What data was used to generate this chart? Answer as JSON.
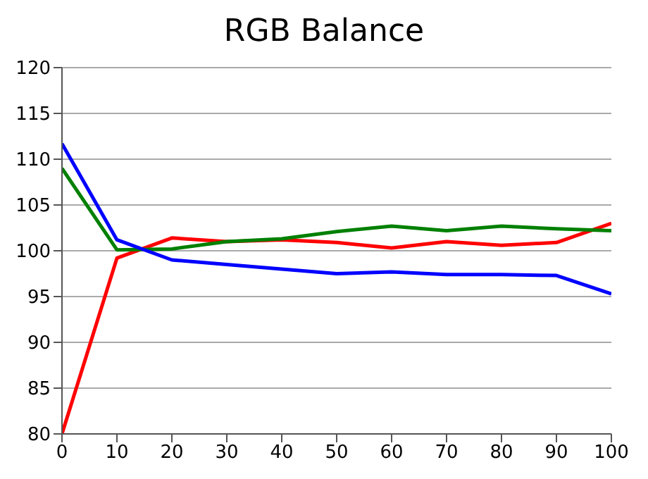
{
  "chart_data": {
    "type": "line",
    "title": "RGB Balance",
    "x": [
      0,
      10,
      20,
      30,
      40,
      50,
      60,
      70,
      80,
      90,
      100
    ],
    "series": [
      {
        "color": "#ff0000",
        "values": [
          80,
          99.2,
          101.4,
          101.0,
          101.2,
          100.9,
          100.3,
          101.0,
          100.6,
          100.9,
          103.0
        ]
      },
      {
        "color": "#008000",
        "values": [
          109,
          100.1,
          100.2,
          101.0,
          101.3,
          102.1,
          102.7,
          102.2,
          102.7,
          102.4,
          102.2
        ]
      },
      {
        "color": "#0000ff",
        "values": [
          111.7,
          101.2,
          99.0,
          98.5,
          98.0,
          97.5,
          97.7,
          97.4,
          97.4,
          97.3,
          95.3
        ]
      }
    ],
    "xlim": [
      0,
      100
    ],
    "xticks": [
      0,
      10,
      20,
      30,
      40,
      50,
      60,
      70,
      80,
      90,
      100
    ],
    "ylim": [
      80,
      120
    ],
    "yticks": [
      80,
      85,
      90,
      95,
      100,
      105,
      110,
      115,
      120
    ],
    "grid": "y",
    "legend": false,
    "marker": "none",
    "line_style": "solid"
  }
}
